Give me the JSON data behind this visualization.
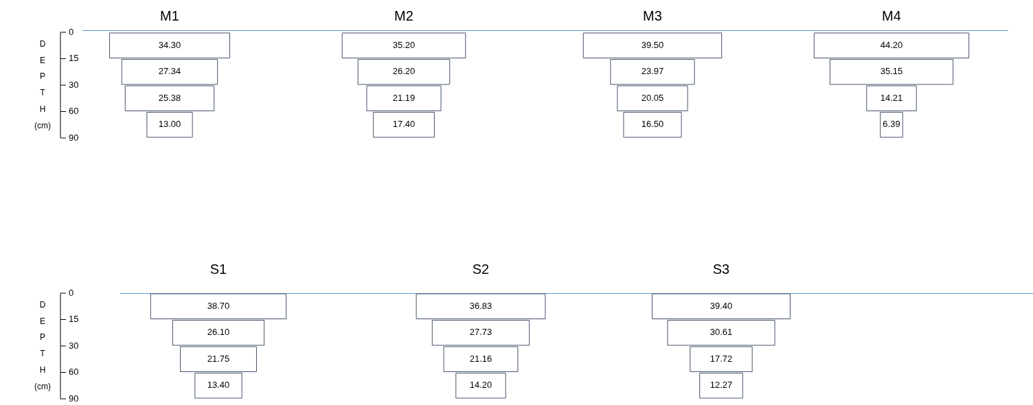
{
  "chart_data": [
    {
      "type": "other",
      "title": "M1",
      "categories": [
        null,
        null,
        null,
        null
      ],
      "values": [
        34.3,
        27.34,
        25.38,
        13.0
      ],
      "value_labels": [
        "34.30",
        "27.34",
        "25.38",
        "13.00"
      ],
      "color": "#ffffff",
      "ylabel": "DEPTH (cm)",
      "annotations": [
        "0",
        "15",
        "30",
        "60",
        "90"
      ]
    },
    {
      "type": "other",
      "title": "M2",
      "categories": [
        null,
        null,
        null,
        null
      ],
      "values": [
        35.2,
        26.2,
        21.19,
        17.4
      ],
      "value_labels": [
        "35.20",
        "26.20",
        "21.19",
        "17.40"
      ],
      "color": "#ffffff"
    },
    {
      "type": "other",
      "title": "M3",
      "categories": [
        null,
        null,
        null,
        null
      ],
      "values": [
        39.5,
        23.97,
        20.05,
        16.5
      ],
      "value_labels": [
        "39.50",
        "23.97",
        "20.05",
        "16.50"
      ],
      "color": "#ffffff"
    },
    {
      "type": "other",
      "title": "M4",
      "categories": [
        null,
        null,
        null,
        null
      ],
      "values": [
        44.2,
        35.15,
        14.21,
        6.39
      ],
      "value_labels": [
        "44.20",
        "35.15",
        "14.21",
        "6.39"
      ],
      "color": "#ffffff"
    },
    {
      "type": "other",
      "title": "S1",
      "categories": [
        null,
        null,
        null,
        null
      ],
      "values": [
        38.7,
        26.1,
        21.75,
        13.4
      ],
      "value_labels": [
        "38.70",
        "26.10",
        "21.75",
        "13.40"
      ],
      "color": "#ffffff",
      "ylabel": "DEPTH (cm)",
      "annotations": [
        "0",
        "15",
        "30",
        "60",
        "90"
      ]
    },
    {
      "type": "other",
      "title": "S2",
      "categories": [
        null,
        null,
        null,
        null
      ],
      "values": [
        36.83,
        27.73,
        21.16,
        14.2
      ],
      "value_labels": [
        "36.83",
        "27.73",
        "21.16",
        "14.20"
      ],
      "color": "#ffffff"
    },
    {
      "type": "other",
      "title": "S3",
      "categories": [
        null,
        null,
        null,
        null
      ],
      "values": [
        39.4,
        30.61,
        17.72,
        12.27
      ],
      "value_labels": [
        "39.40",
        "30.61",
        "17.72",
        "12.27"
      ],
      "color": "#ffffff"
    }
  ]
}
